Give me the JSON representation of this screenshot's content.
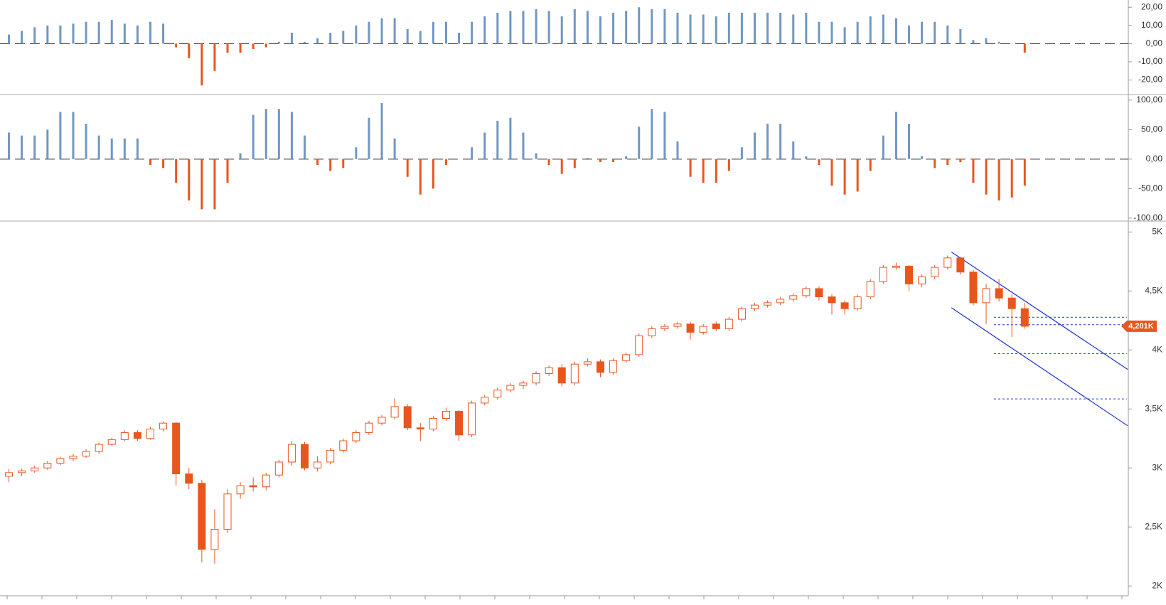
{
  "chart_data": [
    {
      "type": "bar",
      "color_up": "#7197c2",
      "color_down": "#e8561e",
      "ylim": [
        -28,
        24
      ],
      "yticks": [
        {
          "value": 20,
          "label": "20,00"
        },
        {
          "value": 10,
          "label": "10,00"
        },
        {
          "value": 0,
          "label": "0,00"
        },
        {
          "value": -10,
          "label": "-10,00"
        },
        {
          "value": -20,
          "label": "-20,00"
        }
      ],
      "values": [
        5,
        7,
        9,
        10,
        10,
        11,
        12,
        12,
        13,
        11,
        10,
        12,
        11,
        -2,
        -8,
        -23,
        -15,
        -5,
        -5,
        -3,
        -2,
        1,
        6,
        1,
        3,
        6,
        7,
        10,
        12,
        14,
        14,
        8,
        7,
        12,
        12,
        6,
        12,
        15,
        17,
        18,
        18,
        19,
        18,
        15,
        19,
        18,
        15,
        17,
        18,
        20,
        19,
        19,
        17,
        16,
        16,
        15,
        17,
        17,
        17,
        17,
        17,
        16,
        17,
        12,
        12,
        9,
        12,
        15,
        16,
        14,
        10,
        12,
        12,
        10,
        8,
        2,
        3,
        1,
        0,
        -5
      ]
    },
    {
      "type": "bar",
      "color_up": "#7197c2",
      "color_down": "#e8561e",
      "ylim": [
        -105,
        107
      ],
      "yticks": [
        {
          "value": 100,
          "label": "100,00"
        },
        {
          "value": 50,
          "label": "50,00"
        },
        {
          "value": 0,
          "label": "0,00"
        },
        {
          "value": -50,
          "label": "-50,00"
        },
        {
          "value": -100,
          "label": "-100,00"
        }
      ],
      "values": [
        45,
        40,
        40,
        50,
        80,
        80,
        60,
        40,
        35,
        35,
        35,
        -10,
        -15,
        -40,
        -70,
        -85,
        -85,
        -40,
        10,
        75,
        85,
        85,
        80,
        40,
        -10,
        -20,
        -15,
        20,
        70,
        95,
        35,
        -30,
        -60,
        -50,
        -10,
        0,
        20,
        45,
        65,
        70,
        45,
        10,
        -10,
        -25,
        -15,
        2,
        -5,
        -5,
        5,
        55,
        85,
        80,
        30,
        -30,
        -40,
        -40,
        -20,
        20,
        45,
        60,
        60,
        30,
        5,
        -10,
        -45,
        -60,
        -55,
        -20,
        40,
        80,
        60,
        5,
        -15,
        -10,
        -5,
        -40,
        -60,
        -70,
        -65,
        -45
      ]
    },
    {
      "type": "candlestick",
      "color": "#e8561e",
      "ylim": [
        1935,
        5080
      ],
      "yticks": [
        {
          "value": 5000,
          "label": "5K"
        },
        {
          "value": 4500,
          "label": "4,5K"
        },
        {
          "value": 4000,
          "label": "4K"
        },
        {
          "value": 3500,
          "label": "3,5K"
        },
        {
          "value": 3000,
          "label": "3K"
        },
        {
          "value": 2500,
          "label": "2,5K"
        },
        {
          "value": 2000,
          "label": "2K"
        }
      ],
      "ohlc": [
        [
          2930,
          2990,
          2880,
          2960
        ],
        [
          2960,
          2995,
          2930,
          2975
        ],
        [
          2975,
          3020,
          2960,
          3000
        ],
        [
          3000,
          3060,
          2985,
          3040
        ],
        [
          3040,
          3095,
          3025,
          3080
        ],
        [
          3080,
          3120,
          3060,
          3100
        ],
        [
          3100,
          3160,
          3085,
          3140
        ],
        [
          3140,
          3215,
          3120,
          3200
        ],
        [
          3200,
          3255,
          3185,
          3240
        ],
        [
          3240,
          3320,
          3225,
          3300
        ],
        [
          3300,
          3320,
          3230,
          3250
        ],
        [
          3250,
          3350,
          3240,
          3330
        ],
        [
          3330,
          3395,
          3310,
          3380
        ],
        [
          3380,
          3390,
          2850,
          2950
        ],
        [
          2950,
          3000,
          2820,
          2870
        ],
        [
          2870,
          2900,
          2200,
          2310
        ],
        [
          2310,
          2650,
          2190,
          2480
        ],
        [
          2480,
          2820,
          2450,
          2780
        ],
        [
          2780,
          2880,
          2740,
          2850
        ],
        [
          2850,
          2920,
          2800,
          2840
        ],
        [
          2840,
          2960,
          2810,
          2940
        ],
        [
          2940,
          3070,
          2920,
          3050
        ],
        [
          3050,
          3230,
          3020,
          3200
        ],
        [
          3200,
          3220,
          2980,
          3000
        ],
        [
          3000,
          3100,
          2970,
          3050
        ],
        [
          3050,
          3170,
          3030,
          3150
        ],
        [
          3150,
          3250,
          3130,
          3230
        ],
        [
          3230,
          3320,
          3210,
          3300
        ],
        [
          3300,
          3400,
          3280,
          3380
        ],
        [
          3380,
          3450,
          3360,
          3430
        ],
        [
          3430,
          3590,
          3410,
          3520
        ],
        [
          3520,
          3540,
          3320,
          3340
        ],
        [
          3340,
          3380,
          3230,
          3330
        ],
        [
          3330,
          3440,
          3310,
          3420
        ],
        [
          3420,
          3510,
          3400,
          3480
        ],
        [
          3480,
          3490,
          3230,
          3280
        ],
        [
          3280,
          3570,
          3260,
          3550
        ],
        [
          3550,
          3620,
          3530,
          3600
        ],
        [
          3600,
          3680,
          3580,
          3660
        ],
        [
          3660,
          3720,
          3640,
          3700
        ],
        [
          3700,
          3740,
          3670,
          3720
        ],
        [
          3720,
          3820,
          3700,
          3800
        ],
        [
          3800,
          3870,
          3780,
          3850
        ],
        [
          3850,
          3880,
          3690,
          3720
        ],
        [
          3720,
          3900,
          3700,
          3880
        ],
        [
          3880,
          3930,
          3860,
          3900
        ],
        [
          3900,
          3920,
          3770,
          3810
        ],
        [
          3810,
          3930,
          3790,
          3910
        ],
        [
          3910,
          3980,
          3890,
          3960
        ],
        [
          3960,
          4140,
          3940,
          4120
        ],
        [
          4120,
          4200,
          4100,
          4180
        ],
        [
          4180,
          4220,
          4160,
          4200
        ],
        [
          4200,
          4240,
          4180,
          4220
        ],
        [
          4220,
          4240,
          4090,
          4150
        ],
        [
          4150,
          4220,
          4130,
          4200
        ],
        [
          4220,
          4240,
          4160,
          4180
        ],
        [
          4180,
          4280,
          4160,
          4260
        ],
        [
          4260,
          4370,
          4240,
          4350
        ],
        [
          4350,
          4400,
          4330,
          4380
        ],
        [
          4380,
          4420,
          4360,
          4400
        ],
        [
          4400,
          4450,
          4380,
          4430
        ],
        [
          4430,
          4480,
          4410,
          4460
        ],
        [
          4460,
          4540,
          4440,
          4520
        ],
        [
          4520,
          4540,
          4420,
          4450
        ],
        [
          4450,
          4470,
          4300,
          4400
        ],
        [
          4400,
          4420,
          4300,
          4350
        ],
        [
          4350,
          4470,
          4330,
          4450
        ],
        [
          4450,
          4600,
          4430,
          4580
        ],
        [
          4580,
          4720,
          4560,
          4700
        ],
        [
          4700,
          4740,
          4680,
          4710
        ],
        [
          4710,
          4720,
          4500,
          4560
        ],
        [
          4560,
          4640,
          4530,
          4620
        ],
        [
          4620,
          4720,
          4600,
          4700
        ],
        [
          4700,
          4800,
          4680,
          4780
        ],
        [
          4780,
          4790,
          4640,
          4660
        ],
        [
          4660,
          4680,
          4380,
          4400
        ],
        [
          4400,
          4560,
          4220,
          4520
        ],
        [
          4520,
          4600,
          4410,
          4440
        ],
        [
          4440,
          4470,
          4110,
          4350
        ],
        [
          4350,
          4400,
          4180,
          4201
        ]
      ],
      "last_label": {
        "value": 4201,
        "label": "4,201K"
      },
      "levels": [
        4277,
        4214,
        3969,
        3585
      ],
      "level_color": "#1f2fd6",
      "channel": [
        {
          "from": [
            73.3,
            4830
          ],
          "to": [
            87,
            3836
          ]
        },
        {
          "from": [
            73.3,
            4358
          ],
          "to": [
            87,
            3358
          ]
        }
      ],
      "channel_color": "#1f2fd6"
    }
  ]
}
